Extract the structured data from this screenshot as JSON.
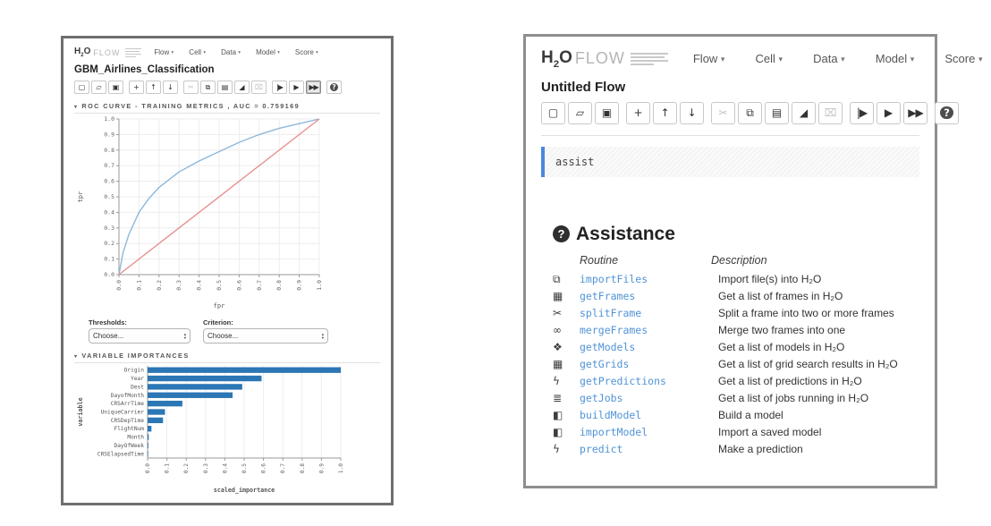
{
  "ui": {
    "caret": "▾",
    "stepper_up": "▴",
    "stepper_down": "▾"
  },
  "logo": {
    "h2o": "H",
    "h2o_sub": "2",
    "h2o_o": "O",
    "flow": "FLOW"
  },
  "menus": [
    "Flow",
    "Cell",
    "Data",
    "Model",
    "Score"
  ],
  "left_panel": {
    "title": "GBM_Airlines_Classification",
    "toolbar": [
      {
        "icon": "new-flow-icon",
        "glyph": "▢",
        "group": 0
      },
      {
        "icon": "open-flow-icon",
        "glyph": "▱",
        "group": 0
      },
      {
        "icon": "save-flow-icon",
        "glyph": "▣",
        "group": 0
      },
      {
        "icon": "insert-cell-icon",
        "glyph": "+",
        "group": 1
      },
      {
        "icon": "move-cell-up-icon",
        "glyph": "↑",
        "group": 1
      },
      {
        "icon": "move-cell-down-icon",
        "glyph": "↓",
        "group": 1
      },
      {
        "icon": "cut-cell-icon",
        "glyph": "✂",
        "group": 2,
        "disabled": true
      },
      {
        "icon": "copy-cell-icon",
        "glyph": "⧉",
        "group": 2
      },
      {
        "icon": "paste-cell-icon",
        "glyph": "▤",
        "group": 2
      },
      {
        "icon": "erase-cell-icon",
        "glyph": "◢",
        "group": 2
      },
      {
        "icon": "delete-cell-icon",
        "glyph": "⌧",
        "group": 2,
        "disabled": true
      },
      {
        "icon": "run-step-icon",
        "glyph": "|▶",
        "group": 3
      },
      {
        "icon": "run-cell-icon",
        "glyph": "▶",
        "group": 3
      },
      {
        "icon": "run-all-icon",
        "glyph": "▶▶",
        "group": 3,
        "active": true
      },
      {
        "icon": "help-icon",
        "glyph": "?",
        "group": 4
      }
    ],
    "thresholds_label": "Thresholds:",
    "thresholds_value": "Choose...",
    "criterion_label": "Criterion:",
    "criterion_value": "Choose..."
  },
  "right_panel": {
    "title": "Untitled Flow",
    "toolbar": [
      {
        "icon": "new-flow-icon",
        "glyph": "▢",
        "group": 0
      },
      {
        "icon": "open-flow-icon",
        "glyph": "▱",
        "group": 0
      },
      {
        "icon": "save-flow-icon",
        "glyph": "▣",
        "group": 0
      },
      {
        "icon": "insert-cell-icon",
        "glyph": "+",
        "group": 1
      },
      {
        "icon": "move-cell-up-icon",
        "glyph": "↑",
        "group": 1
      },
      {
        "icon": "move-cell-down-icon",
        "glyph": "↓",
        "group": 1
      },
      {
        "icon": "cut-cell-icon",
        "glyph": "✂",
        "group": 2,
        "disabled": true
      },
      {
        "icon": "copy-cell-icon",
        "glyph": "⧉",
        "group": 2
      },
      {
        "icon": "paste-cell-icon",
        "glyph": "▤",
        "group": 2
      },
      {
        "icon": "erase-cell-icon",
        "glyph": "◢",
        "group": 2
      },
      {
        "icon": "delete-cell-icon",
        "glyph": "⌧",
        "group": 2,
        "disabled": true
      },
      {
        "icon": "run-step-icon",
        "glyph": "|▶",
        "group": 3
      },
      {
        "icon": "run-cell-icon",
        "glyph": "▶",
        "group": 3
      },
      {
        "icon": "run-all-icon",
        "glyph": "▶▶",
        "group": 3
      },
      {
        "icon": "help-icon",
        "glyph": "?",
        "group": 4
      }
    ],
    "assist_code": "assist",
    "assistance_heading": "Assistance",
    "help_glyph": "?",
    "columns": {
      "routine": "Routine",
      "description": "Description"
    },
    "routines": [
      {
        "icon": "copy-icon",
        "glyph": "⧉",
        "name": "importFiles",
        "description": "Import file(s) into H₂O"
      },
      {
        "icon": "table-icon",
        "glyph": "▦",
        "name": "getFrames",
        "description": "Get a list of frames in H₂O"
      },
      {
        "icon": "scissors-icon",
        "glyph": "✂",
        "name": "splitFrame",
        "description": "Split a frame into two or more frames"
      },
      {
        "icon": "link-icon",
        "glyph": "∞",
        "name": "mergeFrames",
        "description": "Merge two frames into one"
      },
      {
        "icon": "cubes-icon",
        "glyph": "❖",
        "name": "getModels",
        "description": "Get a list of models in H₂O"
      },
      {
        "icon": "grid-icon",
        "glyph": "▦",
        "name": "getGrids",
        "description": "Get a list of grid search results in H₂O"
      },
      {
        "icon": "bolt-icon",
        "glyph": "ϟ",
        "name": "getPredictions",
        "description": "Get a list of predictions in H₂O"
      },
      {
        "icon": "tasks-icon",
        "glyph": "≣",
        "name": "getJobs",
        "description": "Get a list of jobs running in H₂O"
      },
      {
        "icon": "cube-icon",
        "glyph": "◧",
        "name": "buildModel",
        "description": "Build a model"
      },
      {
        "icon": "cube-icon",
        "glyph": "◧",
        "name": "importModel",
        "description": "Import a saved model"
      },
      {
        "icon": "bolt-icon",
        "glyph": "ϟ",
        "name": "predict",
        "description": "Make a prediction"
      }
    ]
  },
  "chart_data": [
    {
      "type": "line",
      "title": "ROC CURVE - TRAINING METRICS , AUC = 0.759169",
      "xlabel": "fpr",
      "ylabel": "tpr",
      "xlim": [
        0,
        1
      ],
      "ylim": [
        0,
        1
      ],
      "xticks": [
        0,
        0.1,
        0.2,
        0.3,
        0.4,
        0.5,
        0.6,
        0.7,
        0.8,
        0.9,
        1
      ],
      "yticks": [
        0,
        0.1,
        0.2,
        0.3,
        0.4,
        0.5,
        0.6,
        0.7,
        0.8,
        0.9,
        1
      ],
      "grid": true,
      "legend_position": "none",
      "series": [
        {
          "name": "ROC curve",
          "color": "#8db8da",
          "x": [
            0,
            0.02,
            0.05,
            0.1,
            0.15,
            0.2,
            0.25,
            0.3,
            0.4,
            0.5,
            0.6,
            0.7,
            0.8,
            0.9,
            1
          ],
          "y": [
            0,
            0.14,
            0.26,
            0.4,
            0.49,
            0.56,
            0.61,
            0.66,
            0.73,
            0.79,
            0.85,
            0.9,
            0.94,
            0.97,
            1
          ]
        },
        {
          "name": "random reference",
          "color": "#e88f8f",
          "x": [
            0,
            1
          ],
          "y": [
            0,
            1
          ]
        }
      ]
    },
    {
      "type": "bar",
      "orientation": "horizontal",
      "title": "VARIABLE IMPORTANCES",
      "xlabel": "scaled_importance",
      "ylabel": "variable",
      "categories": [
        "Origin",
        "Year",
        "Dest",
        "DayofMonth",
        "CRSArrTime",
        "UniqueCarrier",
        "CRSDepTime",
        "FlightNum",
        "Month",
        "DayOfWeek",
        "CRSElapsedTime"
      ],
      "values": [
        1.0,
        0.59,
        0.49,
        0.44,
        0.18,
        0.09,
        0.08,
        0.02,
        0.006,
        0.004,
        0.003
      ],
      "xlim": [
        0,
        1
      ],
      "xticks": [
        0,
        0.1,
        0.2,
        0.3,
        0.4,
        0.5,
        0.6,
        0.7,
        0.8,
        0.9,
        1
      ],
      "bar_color": "#2b76b5",
      "grid": true
    }
  ]
}
